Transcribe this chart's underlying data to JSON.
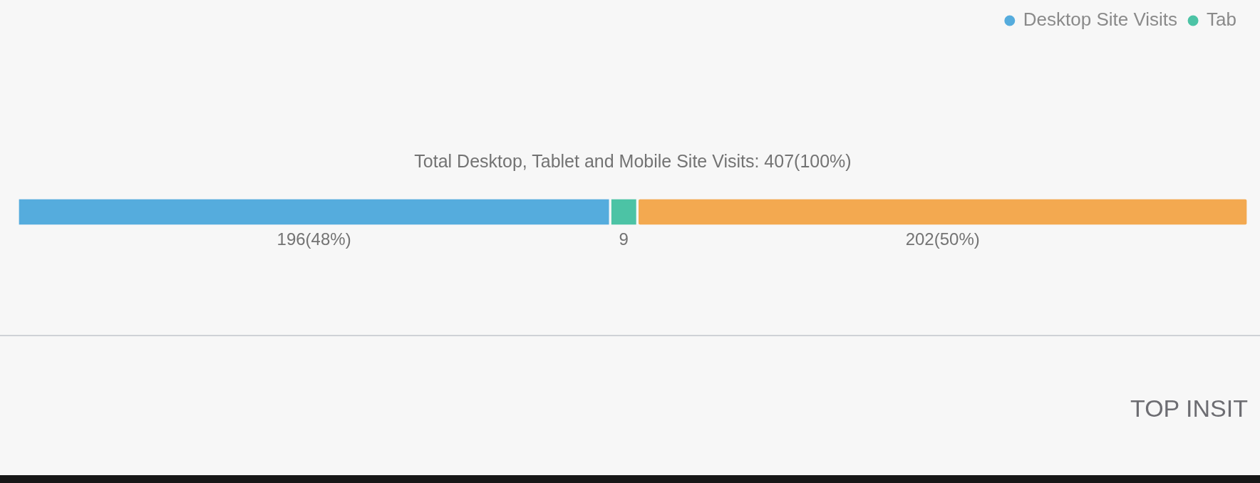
{
  "chart_data": {
    "type": "bar",
    "orientation": "horizontal",
    "stacked": true,
    "title": "Total Desktop, Tablet and Mobile Site Visits: 407(100%)",
    "categories": [
      null
    ],
    "series": [
      {
        "name": "Desktop Site Visits",
        "color": "#55acdd",
        "values": [
          196
        ],
        "value_labels": [
          "196(48%)"
        ]
      },
      {
        "name": "Tab",
        "color": "#4cc3a5",
        "values": [
          9
        ],
        "value_labels": [
          "9"
        ]
      },
      {
        "color": "#f3a950",
        "values": [
          202
        ],
        "value_labels": [
          "202(50%)"
        ]
      }
    ],
    "tick_labels": false,
    "legend": "top right",
    "annotations": [
      "TOP INSIT"
    ]
  }
}
